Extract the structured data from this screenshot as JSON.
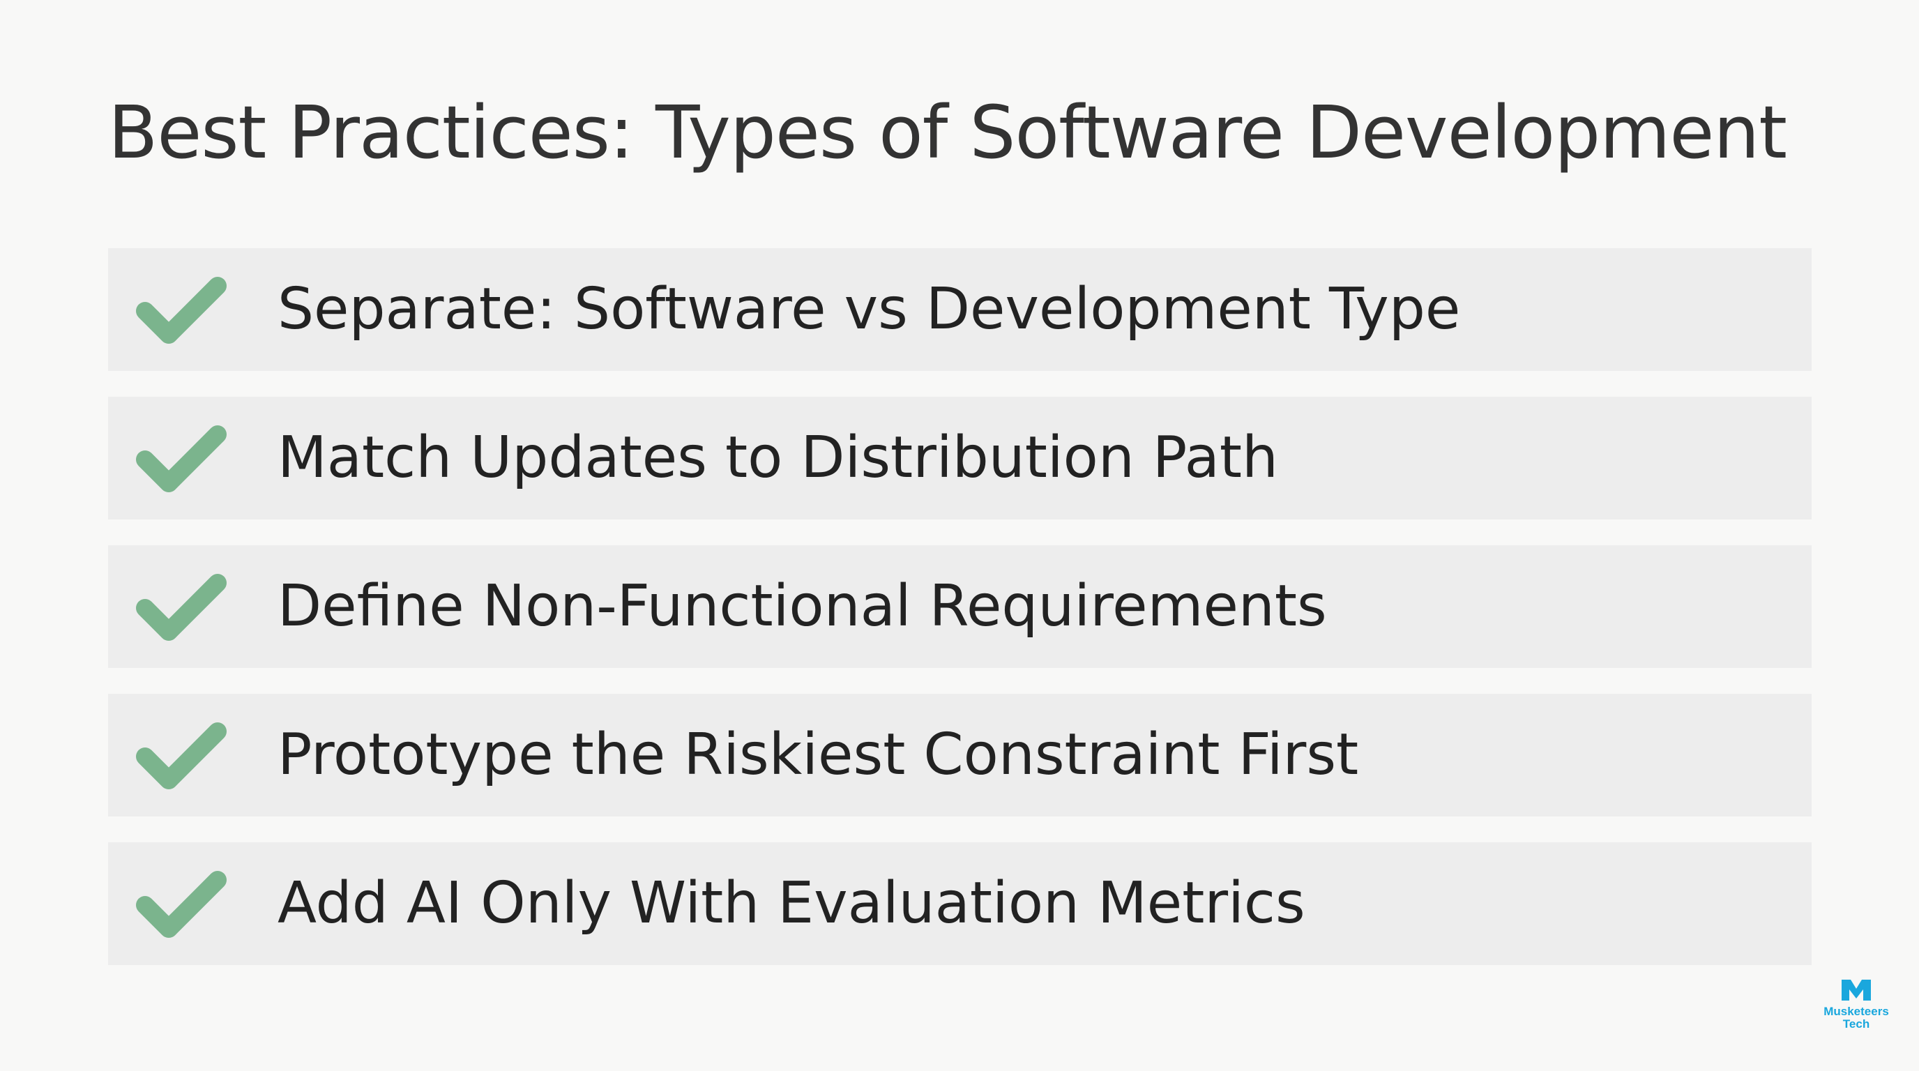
{
  "slide": {
    "title": "Best Practices: Types of Software Development",
    "items": [
      {
        "icon": "check-icon",
        "label": "Separate: Software vs Development Type"
      },
      {
        "icon": "check-icon",
        "label": "Match Updates to Distribution Path"
      },
      {
        "icon": "check-icon",
        "label": "Define Non-Functional Requirements"
      },
      {
        "icon": "check-icon",
        "label": "Prototype the Riskiest Constraint First"
      },
      {
        "icon": "check-icon",
        "label": "Add AI Only With Evaluation Metrics"
      }
    ]
  },
  "logo": {
    "line1": "Musketeers",
    "line2": "Tech"
  },
  "colors": {
    "background": "#f8f8f7",
    "row": "#ededed",
    "check": "#7bb48d",
    "text": "#222222",
    "logo": "#1aa7dd"
  }
}
